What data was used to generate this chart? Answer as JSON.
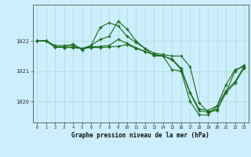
{
  "title": "Graphe pression niveau de la mer (hPa)",
  "background_color": "#cceeff",
  "grid_color": "#aaddcc",
  "line_color": "#1a6b1a",
  "x_ticks": [
    0,
    1,
    2,
    3,
    4,
    5,
    6,
    7,
    8,
    9,
    10,
    11,
    12,
    13,
    14,
    15,
    16,
    17,
    18,
    19,
    20,
    21,
    22,
    23
  ],
  "ylim": [
    1019.3,
    1023.2
  ],
  "yticks": [
    1020,
    1021,
    1022
  ],
  "line1": {
    "x": [
      0,
      1,
      2,
      3,
      4,
      5,
      6,
      7,
      8,
      9,
      10,
      11,
      12,
      13,
      14,
      15,
      16,
      17,
      18,
      19,
      20,
      21,
      22,
      23
    ],
    "y": [
      1022.0,
      1022.0,
      1021.85,
      1021.85,
      1021.85,
      1021.75,
      1021.85,
      1022.45,
      1022.6,
      1022.5,
      1022.15,
      1021.95,
      1021.75,
      1021.5,
      1021.5,
      1021.05,
      1021.0,
      1020.0,
      1019.55,
      1019.55,
      1019.85,
      1020.55,
      1021.05,
      1021.15
    ]
  },
  "line2": {
    "x": [
      0,
      1,
      2,
      3,
      4,
      5,
      6,
      7,
      8,
      9,
      10,
      11,
      12,
      13,
      14,
      15,
      16,
      17,
      18,
      19,
      20,
      21,
      22,
      23
    ],
    "y": [
      1022.0,
      1022.0,
      1021.8,
      1021.8,
      1021.9,
      1021.7,
      1021.85,
      1022.05,
      1022.15,
      1022.65,
      1022.4,
      1022.0,
      1021.75,
      1021.6,
      1021.55,
      1021.5,
      1021.5,
      1021.15,
      1019.95,
      1019.65,
      1019.7,
      1020.3,
      1021.0,
      1021.2
    ]
  },
  "line3": {
    "x": [
      0,
      1,
      2,
      3,
      4,
      5,
      6,
      7,
      8,
      9,
      10,
      11,
      12,
      13,
      14,
      15,
      16,
      17,
      18,
      19,
      20,
      21,
      22,
      23
    ],
    "y": [
      1022.0,
      1022.0,
      1021.8,
      1021.78,
      1021.8,
      1021.75,
      1021.8,
      1021.82,
      1021.85,
      1022.05,
      1021.92,
      1021.78,
      1021.65,
      1021.55,
      1021.5,
      1021.4,
      1021.1,
      1020.3,
      1019.75,
      1019.7,
      1019.85,
      1020.35,
      1020.65,
      1021.15
    ]
  },
  "line4": {
    "x": [
      0,
      1,
      2,
      3,
      4,
      5,
      6,
      7,
      8,
      9,
      10,
      11,
      12,
      13,
      14,
      15,
      16,
      17,
      18,
      19,
      20,
      21,
      22,
      23
    ],
    "y": [
      1022.0,
      1022.0,
      1021.8,
      1021.78,
      1021.78,
      1021.75,
      1021.78,
      1021.78,
      1021.8,
      1021.82,
      1021.88,
      1021.75,
      1021.65,
      1021.55,
      1021.5,
      1021.38,
      1021.05,
      1020.28,
      1019.68,
      1019.65,
      1019.75,
      1020.28,
      1020.6,
      1021.1
    ]
  }
}
